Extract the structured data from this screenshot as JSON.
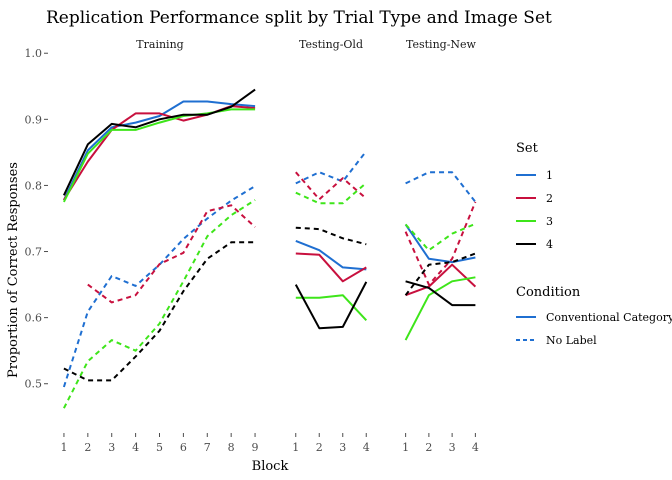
{
  "chart_data": {
    "type": "line",
    "title": "Replication Performance split by Trial Type and Image Set",
    "xlabel": "Block",
    "ylabel": "Proportion of Correct Responses",
    "ylim": [
      0.43,
      1.02
    ],
    "yticks": [
      "0.5",
      "0.6",
      "0.7",
      "0.8",
      "0.9",
      "1.0"
    ],
    "grid": false,
    "legend_placement": "right",
    "set_legend": {
      "title": "Set",
      "items": [
        {
          "label": "1",
          "color": "#1f6fd1"
        },
        {
          "label": "2",
          "color": "#c8103e"
        },
        {
          "label": "3",
          "color": "#3ee51a"
        },
        {
          "label": "4",
          "color": "#000000"
        }
      ]
    },
    "condition_legend": {
      "title": "Condition",
      "items": [
        {
          "label": "Conventional Category",
          "dash": "solid"
        },
        {
          "label": "No Label",
          "dash": "dashed"
        }
      ]
    },
    "panels": [
      {
        "label": "Training",
        "x": [
          1,
          2,
          3,
          4,
          5,
          6,
          7,
          8,
          9
        ],
        "x_labels": [
          "1",
          "2",
          "3",
          "4",
          "5",
          "6",
          "7",
          "8",
          "9"
        ],
        "series": [
          {
            "set": "1",
            "condition": "Conventional Category",
            "values": [
              0.778,
              0.853,
              0.888,
              0.895,
              0.905,
              0.927,
              0.927,
              0.923,
              0.92
            ]
          },
          {
            "set": "2",
            "condition": "Conventional Category",
            "values": [
              0.778,
              0.836,
              0.884,
              0.909,
              0.909,
              0.898,
              0.907,
              0.92,
              0.917
            ]
          },
          {
            "set": "3",
            "condition": "Conventional Category",
            "values": [
              0.775,
              0.848,
              0.884,
              0.884,
              0.895,
              0.905,
              0.909,
              0.915,
              0.915
            ]
          },
          {
            "set": "4",
            "condition": "Conventional Category",
            "values": [
              0.785,
              0.862,
              0.893,
              0.888,
              0.9,
              0.907,
              0.907,
              0.919,
              0.945
            ]
          },
          {
            "set": "1",
            "condition": "No Label",
            "values": [
              0.495,
              0.609,
              0.663,
              0.648,
              0.68,
              0.719,
              0.75,
              0.777,
              0.799
            ]
          },
          {
            "set": "2",
            "condition": "No Label",
            "values": [
              null,
              0.65,
              0.623,
              0.634,
              0.681,
              0.698,
              0.761,
              0.77,
              0.737
            ]
          },
          {
            "set": "3",
            "condition": "No Label",
            "values": [
              0.463,
              0.534,
              0.566,
              0.55,
              0.591,
              0.655,
              0.723,
              0.755,
              0.778
            ]
          },
          {
            "set": "4",
            "condition": "No Label",
            "values": [
              0.523,
              0.505,
              0.505,
              0.541,
              0.58,
              0.64,
              0.689,
              0.714,
              0.714
            ]
          }
        ]
      },
      {
        "label": "Testing-Old",
        "x": [
          1,
          2,
          3,
          4
        ],
        "x_labels": [
          "1",
          "2",
          "3",
          "4"
        ],
        "series": [
          {
            "set": "1",
            "condition": "Conventional Category",
            "values": [
              0.716,
              0.702,
              0.676,
              0.673
            ]
          },
          {
            "set": "2",
            "condition": "Conventional Category",
            "values": [
              0.697,
              0.695,
              0.655,
              0.676
            ]
          },
          {
            "set": "3",
            "condition": "Conventional Category",
            "values": [
              0.63,
              0.63,
              0.634,
              0.596
            ]
          },
          {
            "set": "4",
            "condition": "Conventional Category",
            "values": [
              0.65,
              0.584,
              0.586,
              0.654
            ]
          },
          {
            "set": "1",
            "condition": "No Label",
            "values": [
              0.803,
              0.82,
              0.806,
              0.852
            ]
          },
          {
            "set": "2",
            "condition": "No Label",
            "values": [
              0.82,
              0.779,
              0.811,
              0.78
            ]
          },
          {
            "set": "3",
            "condition": "No Label",
            "values": [
              0.789,
              0.773,
              0.773,
              0.804
            ]
          },
          {
            "set": "4",
            "condition": "No Label",
            "values": [
              0.736,
              0.734,
              0.72,
              0.711
            ]
          }
        ]
      },
      {
        "label": "Testing-New",
        "x": [
          1,
          2,
          3,
          4
        ],
        "x_labels": [
          "1",
          "2",
          "3",
          "4"
        ],
        "series": [
          {
            "set": "1",
            "condition": "Conventional Category",
            "values": [
              0.741,
              0.689,
              0.684,
              0.691
            ]
          },
          {
            "set": "2",
            "condition": "Conventional Category",
            "values": [
              0.634,
              0.647,
              0.68,
              0.647
            ]
          },
          {
            "set": "3",
            "condition": "Conventional Category",
            "values": [
              0.566,
              0.634,
              0.655,
              0.661
            ]
          },
          {
            "set": "4",
            "condition": "Conventional Category",
            "values": [
              0.655,
              0.645,
              0.619,
              0.619
            ]
          },
          {
            "set": "1",
            "condition": "No Label",
            "values": [
              0.803,
              0.82,
              0.82,
              0.775
            ]
          },
          {
            "set": "2",
            "condition": "No Label",
            "values": [
              0.73,
              0.65,
              0.689,
              0.775
            ]
          },
          {
            "set": "3",
            "condition": "No Label",
            "values": [
              0.741,
              0.702,
              0.727,
              0.742
            ]
          },
          {
            "set": "4",
            "condition": "No Label",
            "values": [
              0.634,
              0.68,
              0.684,
              0.697
            ]
          }
        ]
      }
    ]
  }
}
